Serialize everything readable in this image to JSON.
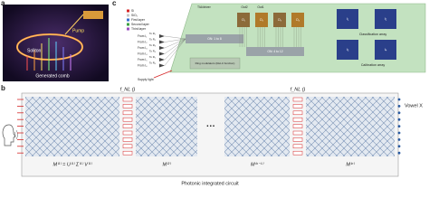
{
  "panel_a": {
    "label": "a",
    "soliton": "Soliton",
    "pump": "Pump",
    "comb": "Generated comb"
  },
  "panel_c": {
    "label": "c",
    "legend": [
      "Si",
      "SiO₂",
      "First layer",
      "Second layer",
      "Third layer"
    ],
    "driver": "TIA/driver",
    "outputs": [
      "Out2",
      "Out1"
    ],
    "inputs": [
      "From I₁",
      "From I₂",
      "From I₃",
      "From I₄",
      "From I₅",
      "From I₆"
    ],
    "targets": [
      "To R₁",
      "To R₂",
      "To R₃",
      "To R₄",
      "To R₅",
      "To R₆"
    ],
    "switch1": "ON: 1 to 8",
    "switch2": "ON: 4 to 12",
    "modulators": "Ring modulators (ReLU function)",
    "supply": "Supply light",
    "cores": [
      "O₁",
      "O₂",
      "O₃",
      "O₄"
    ],
    "classification": "Classification array",
    "calibration": "Calibration array",
    "arrays": [
      "I₁",
      "I₂",
      "I₃",
      "I₄"
    ]
  },
  "panel_b": {
    "label": "b",
    "nonlinear": [
      "f_NL ()",
      "f_NL ()"
    ],
    "ellipsis": "···",
    "output": "Vowel X",
    "matrices": [
      "M⁽¹⁾ = U⁽¹⁾ Σ⁽¹⁾ V⁽¹⁾",
      "M⁽²⁾",
      "M⁽ⁿ⁻¹⁾",
      "M⁽ⁿ⁾"
    ],
    "caption": "Photonic integrated circuit"
  }
}
